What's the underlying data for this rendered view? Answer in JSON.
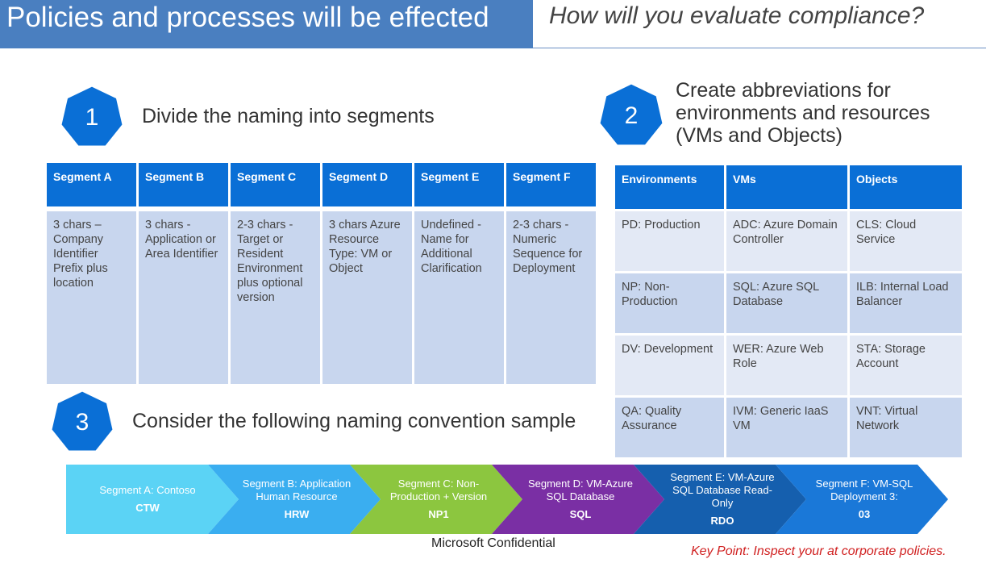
{
  "header": {
    "left_title": "Policies and processes will be effected",
    "right_title": "How will you evaluate compliance?"
  },
  "steps": [
    {
      "number": "1",
      "title": "Divide the naming into segments"
    },
    {
      "number": "2",
      "title": "Create abbreviations for environments and resources (VMs and Objects)"
    },
    {
      "number": "3",
      "title": "Consider the following naming convention sample"
    }
  ],
  "segments_table": {
    "headers": [
      "Segment A",
      "Segment B",
      "Segment C",
      "Segment D",
      "Segment E",
      "Segment F"
    ],
    "cells": [
      "3 chars – Company Identifier Prefix plus location",
      "3 chars - Application or Area Identifier",
      "2-3 chars - Target or Resident Environment plus optional version",
      "3 chars Azure Resource Type: VM or Object",
      "Undefined - Name for Additional Clarification",
      "2-3 chars - Numeric Sequence for Deployment"
    ]
  },
  "abbrev_table": {
    "headers": [
      "Environments",
      "VMs",
      "Objects"
    ],
    "rows": [
      [
        "PD: Production",
        "ADC: Azure Domain Controller",
        "CLS: Cloud Service"
      ],
      [
        "NP: Non-Production",
        "SQL: Azure SQL Database",
        "ILB: Internal Load Balancer"
      ],
      [
        "DV: Development",
        "WER: Azure Web Role",
        "STA: Storage Account"
      ],
      [
        "QA: Quality Assurance",
        "IVM: Generic IaaS VM",
        "VNT: Virtual Network"
      ]
    ]
  },
  "chevrons": [
    {
      "label": "Segment A: Contoso",
      "code": "CTW",
      "color": "#5bd3f5"
    },
    {
      "label": "Segment B: Application Human Resource",
      "code": "HRW",
      "color": "#3aaef0"
    },
    {
      "label": "Segment C: Non-Production + Version",
      "code": "NP1",
      "color": "#8cc63f"
    },
    {
      "label": "Segment D: VM-Azure SQL Database",
      "code": "SQL",
      "color": "#7a2fa4"
    },
    {
      "label": "Segment E: VM-Azure SQL Database Read-Only",
      "code": "RDO",
      "color": "#155fae"
    },
    {
      "label": "Segment F: VM-SQL Deployment 3:",
      "code": "03",
      "color": "#1a78d8"
    }
  ],
  "colors": {
    "header_blue": "#4a7fc0",
    "heptagon_blue": "#0a6fd6",
    "table_header_blue": "#0a6fd6",
    "table_body": "#c8d6ee",
    "keypoint_red": "#d02020"
  },
  "footer": "Microsoft Confidential",
  "key_point": "Key Point: Inspect your at corporate policies."
}
